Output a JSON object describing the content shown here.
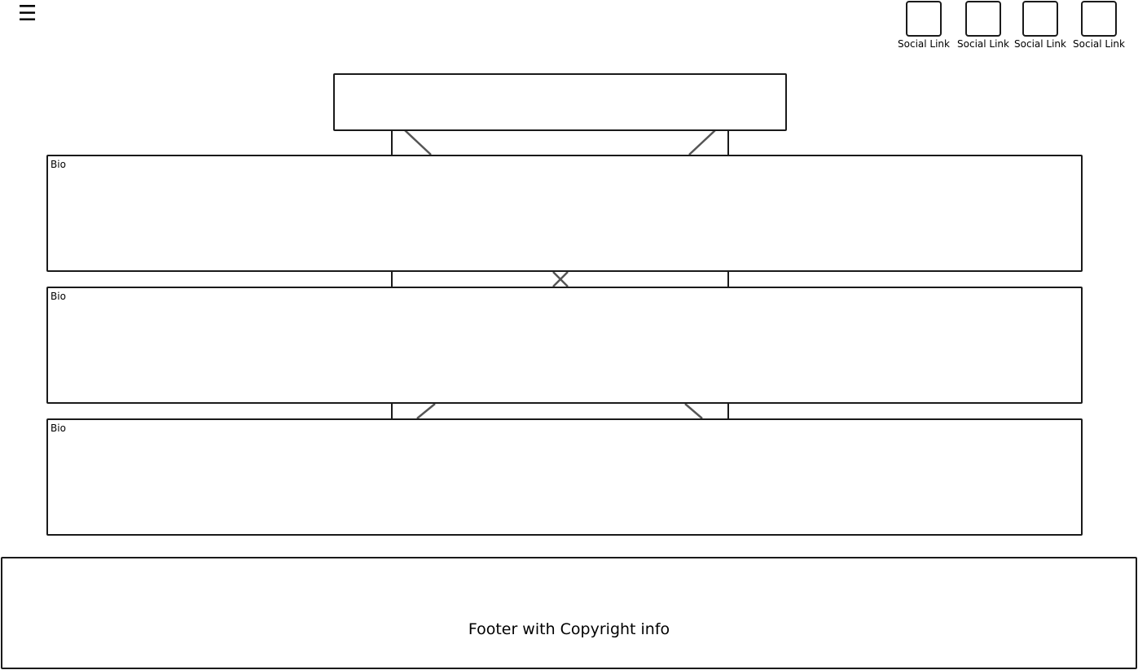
{
  "header": {
    "menu_icon": "☰",
    "social_links": [
      {
        "label": "Social Link",
        "icon": "social-link-icon"
      },
      {
        "label": "Social Link",
        "icon": "social-link-icon"
      },
      {
        "label": "Social Link",
        "icon": "social-link-icon"
      },
      {
        "label": "Social Link",
        "icon": "social-link-icon"
      }
    ]
  },
  "main": {
    "bios": [
      {
        "label": "Bio"
      },
      {
        "label": "Bio"
      },
      {
        "label": "Bio"
      }
    ]
  },
  "footer": {
    "text": "Footer with Copyright info"
  }
}
